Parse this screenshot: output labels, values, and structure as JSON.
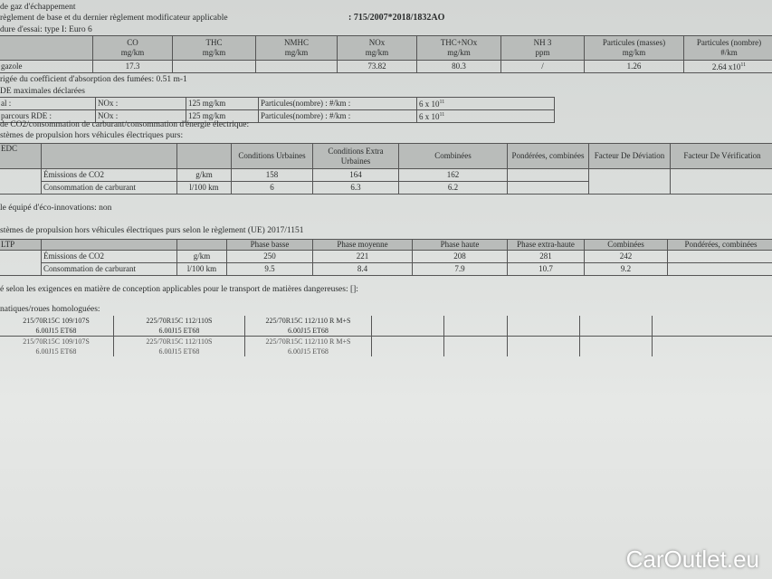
{
  "lines": {
    "l1": "de gaz d'échappement",
    "l2": "règlement de base et du dernier règlement modificateur applicable",
    "ref": ": 715/2007*2018/1832AO",
    "l3": "dure d'essai: type I: Euro 6",
    "l4": "rigée du coefficient d'absorption des fumées: 0.51 m-1",
    "l5": "DE maximales déclarées",
    "l6": "de CO2/consommation de carburant/consommation d'énergie électrique:",
    "l7": "stèmes de propulsion hors véhicules électriques purs:",
    "l8": "le équipé d'éco-innovations: non",
    "l9": "stèmes de propulsion hors véhicules électriques purs selon le règlement (UE) 2017/1151",
    "l10": "é selon les exigences en matière de conception applicables pour le transport de matières dangereuses:  []:",
    "l11": "natiques/roues homologuées:"
  },
  "emissions": {
    "headers": [
      [
        "",
        ""
      ],
      [
        "CO",
        "mg/km"
      ],
      [
        "THC",
        "mg/km"
      ],
      [
        "NMHC",
        "mg/km"
      ],
      [
        "NOx",
        "mg/km"
      ],
      [
        "THC+NOx",
        "mg/km"
      ],
      [
        "NH 3",
        "ppm"
      ],
      [
        "Particules (masses)",
        "mg/km"
      ],
      [
        "Particules (nombre)",
        "#/km"
      ]
    ],
    "row": [
      "gazole",
      "17.3",
      "",
      "",
      "73.82",
      "80.3",
      "/",
      "1.26",
      "2.64 x10",
      "11"
    ]
  },
  "rde": [
    [
      "al :",
      "NOx :",
      "125 mg/km",
      "Particules(nombre) : #/km :",
      "6 x 10",
      "11"
    ],
    [
      "parcours RDE      :",
      "NOx :",
      "125 mg/km",
      "Particules(nombre) : #/km :",
      "6 x 10",
      "11"
    ]
  ],
  "nedc": {
    "headers": [
      "EDC",
      "",
      "",
      "Conditions Urbaines",
      "Conditions Extra Urbaines",
      "Combinées",
      "Pondérées, combinées",
      "Facteur De Déviation",
      "Facteur De Vérification"
    ],
    "rows": [
      [
        "Émissions de CO2",
        "g/km",
        "158",
        "164",
        "162",
        ""
      ],
      [
        "Consommation de carburant",
        "l/100 km",
        "6",
        "6.3",
        "6.2",
        ""
      ]
    ]
  },
  "wltp": {
    "headers": [
      "LTP",
      "",
      "",
      "Phase basse",
      "Phase moyenne",
      "Phase haute",
      "Phase extra-haute",
      "Combinées",
      "Pondérées, combinées"
    ],
    "rows": [
      [
        "Émissions de CO2",
        "g/km",
        "250",
        "221",
        "208",
        "281",
        "242",
        ""
      ],
      [
        "Consommation de carburant",
        "l/100 km",
        "9.5",
        "8.4",
        "7.9",
        "10.7",
        "9.2",
        ""
      ]
    ]
  },
  "tyres": [
    [
      [
        "215/70R15C 109/107S",
        "6.00J15 ET68"
      ],
      [
        "225/70R15C 112/110S",
        "6.00J15 ET68"
      ],
      [
        "225/70R15C 112/110 R M+S",
        "6.00J15 ET68"
      ]
    ],
    [
      [
        "215/70R15C 109/107S",
        "6.00J15 ET68"
      ],
      [
        "225/70R15C 112/110S",
        "6.00J15 ET68"
      ],
      [
        "225/70R15C 112/110 R M+S",
        "6.00J15 ET68"
      ]
    ]
  ],
  "watermark": {
    "brand": "CarOutlet",
    ".eu": ".eu",
    "text": "CarOutlet.eu"
  }
}
